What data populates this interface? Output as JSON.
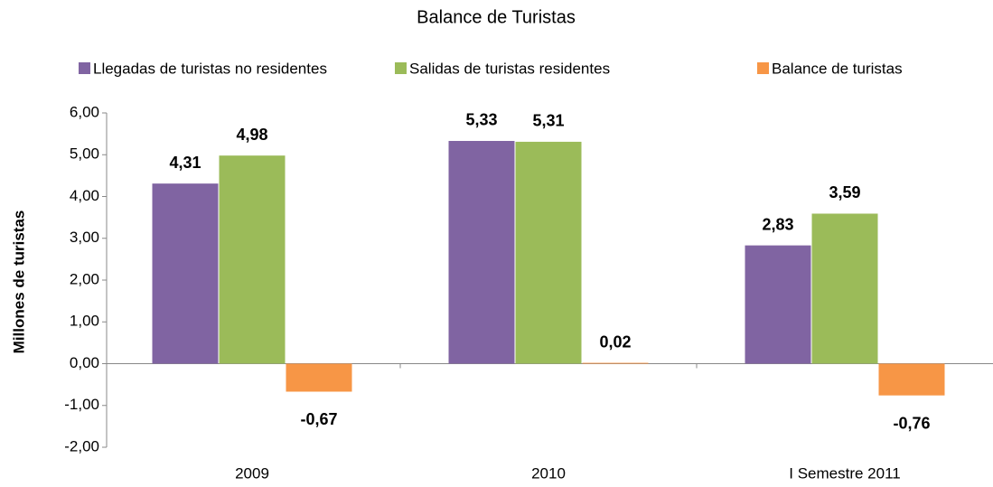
{
  "chart_data": {
    "type": "bar",
    "title": "Balance de Turistas",
    "y_label": "Millones de turistas",
    "categories": [
      "2009",
      "2010",
      "I Semestre 2011"
    ],
    "series": [
      {
        "name": "Llegadas de turistas no residentes",
        "color": "#8064a2",
        "values": [
          4.31,
          5.33,
          2.83
        ],
        "value_labels": [
          "4,31",
          "5,33",
          "2,83"
        ]
      },
      {
        "name": "Salidas de turistas residentes",
        "color": "#9bbb59",
        "values": [
          4.98,
          5.31,
          3.59
        ],
        "value_labels": [
          "4,98",
          "5,31",
          "3,59"
        ]
      },
      {
        "name": "Balance de turistas",
        "color": "#f79646",
        "values": [
          -0.67,
          0.02,
          -0.76
        ],
        "value_labels": [
          "-0,67",
          "0,02",
          "-0,76"
        ]
      }
    ],
    "ylim": [
      -2,
      6
    ],
    "yticks": [
      {
        "value": -2,
        "label": "-2,00"
      },
      {
        "value": -1,
        "label": "-1,00"
      },
      {
        "value": 0,
        "label": "0,00"
      },
      {
        "value": 1,
        "label": "1,00"
      },
      {
        "value": 2,
        "label": "2,00"
      },
      {
        "value": 3,
        "label": "3,00"
      },
      {
        "value": 4,
        "label": "4,00"
      },
      {
        "value": 5,
        "label": "5,00"
      },
      {
        "value": 6,
        "label": "6,00"
      }
    ],
    "grid": false,
    "legend": "top"
  }
}
